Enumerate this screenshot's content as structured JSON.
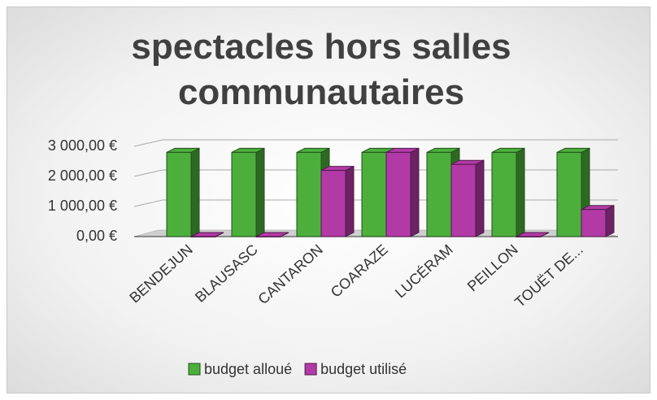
{
  "chart_data": {
    "type": "bar3d",
    "title": "spectacles hors salles communautaires",
    "categories": [
      "BENDEJUN",
      "BLAUSASC",
      "CANTARON",
      "COARAZE",
      "LUCÉRAM",
      "PEILLON",
      "TOUËT DE..."
    ],
    "series": [
      {
        "name": "budget alloué",
        "color": "#4caf3c",
        "values": [
          2800,
          2800,
          2800,
          2800,
          2800,
          2800,
          2800
        ]
      },
      {
        "name": "budget utilisé",
        "color": "#b23aa6",
        "values": [
          0,
          0,
          2200,
          2800,
          2400,
          0,
          900
        ]
      }
    ],
    "ylim": [
      0,
      3000
    ],
    "yticks": [
      {
        "value": 0,
        "label": "0,00 €"
      },
      {
        "value": 1000,
        "label": "1 000,00 €"
      },
      {
        "value": 2000,
        "label": "2 000,00 €"
      },
      {
        "value": 3000,
        "label": "3 000,00 €"
      }
    ],
    "grid": true,
    "legend": "bottom"
  }
}
